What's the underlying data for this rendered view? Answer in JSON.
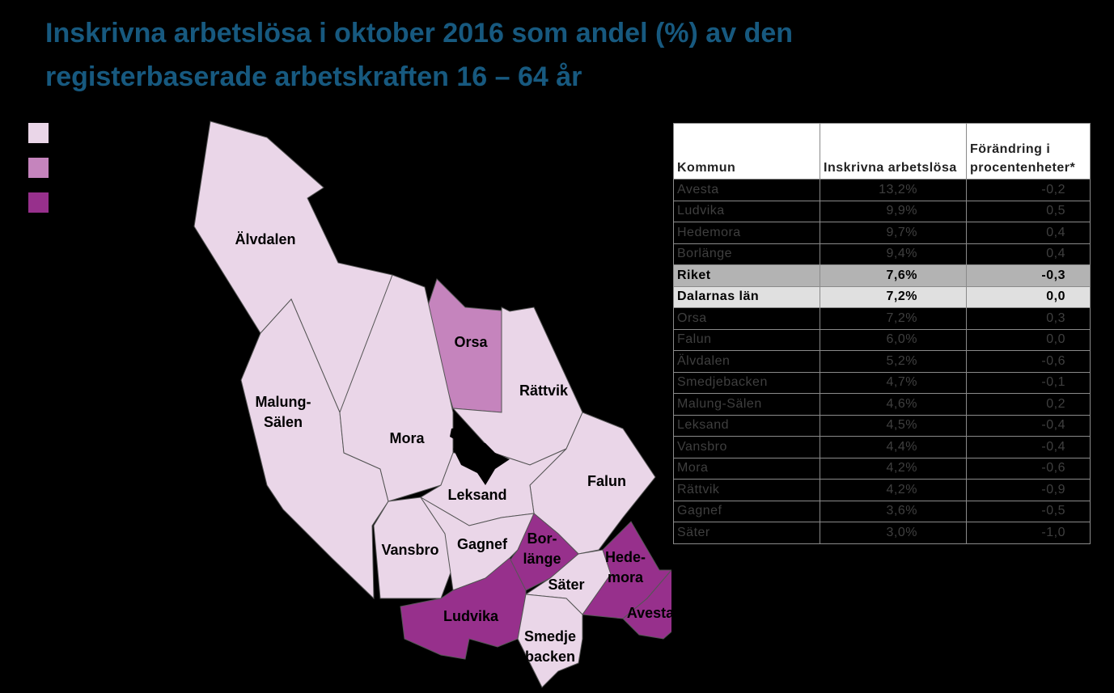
{
  "title": [
    "Inskrivna arbetslösa i oktober 2016 som andel (%) av den",
    "registerbaserade arbetskraften 16 – 64 år"
  ],
  "legend": {
    "colors": [
      "#ead6e8",
      "#c584bd",
      "#97308c"
    ]
  },
  "map": {
    "regions": [
      {
        "label": [
          "Älvdalen"
        ],
        "color": "#ead6e8"
      },
      {
        "label": [
          "Malung-",
          "Sälen"
        ],
        "color": "#ead6e8"
      },
      {
        "label": [
          "Orsa"
        ],
        "color": "#c584bd"
      },
      {
        "label": [
          "Rättvik"
        ],
        "color": "#ead6e8"
      },
      {
        "label": [
          "Mora"
        ],
        "color": "#ead6e8"
      },
      {
        "label": [
          "Falun"
        ],
        "color": "#ead6e8"
      },
      {
        "label": [
          "Leksand"
        ],
        "color": "#ead6e8"
      },
      {
        "label": [
          "Vansbro"
        ],
        "color": "#ead6e8"
      },
      {
        "label": [
          "Gagnef"
        ],
        "color": "#ead6e8"
      },
      {
        "label": [
          "Bor-",
          "länge"
        ],
        "color": "#97308c"
      },
      {
        "label": [
          "Säter"
        ],
        "color": "#ead6e8"
      },
      {
        "label": [
          "Hede-",
          "mora"
        ],
        "color": "#97308c"
      },
      {
        "label": [
          "Avesta"
        ],
        "color": "#97308c"
      },
      {
        "label": [
          "Ludvika"
        ],
        "color": "#97308c"
      },
      {
        "label": [
          "Smedje",
          "backen"
        ],
        "color": "#ead6e8"
      }
    ]
  },
  "table": {
    "header": [
      "Kommun",
      "Inskrivna arbetslösa",
      "Förändring i procentenheter*"
    ],
    "rows": [
      [
        "Avesta",
        "13,2%",
        "-0,2"
      ],
      [
        "Ludvika",
        "9,9%",
        "0,5"
      ],
      [
        "Hedemora",
        "9,7%",
        "0,4"
      ],
      [
        "Borlänge",
        "9,4%",
        "0,4"
      ],
      [
        "Riket",
        "7,6%",
        "-0,3"
      ],
      [
        "Dalarnas län",
        "7,2%",
        "0,0"
      ],
      [
        "Orsa",
        "7,2%",
        "0,3"
      ],
      [
        "Falun",
        "6,0%",
        "0,0"
      ],
      [
        "Älvdalen",
        "5,2%",
        "-0,6"
      ],
      [
        "Smedjebacken",
        "4,7%",
        "-0,1"
      ],
      [
        "Malung-Sälen",
        "4,6%",
        "0,2"
      ],
      [
        "Leksand",
        "4,5%",
        "-0,4"
      ],
      [
        "Vansbro",
        "4,4%",
        "-0,4"
      ],
      [
        "Mora",
        "4,2%",
        "-0,6"
      ],
      [
        "Rättvik",
        "4,2%",
        "-0,9"
      ],
      [
        "Gagnef",
        "3,6%",
        "-0,5"
      ],
      [
        "Säter",
        "3,0%",
        "-1,0"
      ]
    ],
    "emphasis_rows": [
      {
        "row": 4,
        "background": "#b3b3b3"
      },
      {
        "row": 5,
        "background": "#e0e0e0"
      }
    ]
  }
}
